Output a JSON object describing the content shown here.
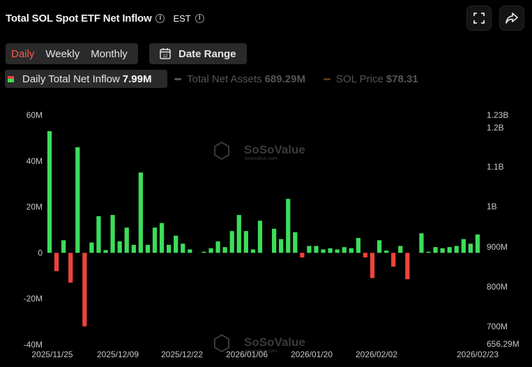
{
  "header": {
    "title": "Total SOL Spot ETF Net Inflow",
    "info_icon": "info-icon",
    "timezone": "EST",
    "fullscreen_icon": "fullscreen-icon",
    "share_icon": "share-icon"
  },
  "period_tabs": [
    {
      "label": "Daily",
      "active": true
    },
    {
      "label": "Weekly",
      "active": false
    },
    {
      "label": "Monthly",
      "active": false
    }
  ],
  "date_range": {
    "label": "Date Range",
    "icon": "calendar-icon",
    "icon_text": "12"
  },
  "legend": [
    {
      "name": "Daily Total Net Inflow",
      "value": "7.99M",
      "active": true
    },
    {
      "name": "Total Net Assets",
      "value": "689.29M",
      "active": false,
      "color": "#555555"
    },
    {
      "name": "SOL Price",
      "value": "$78.31",
      "active": false,
      "color": "#5a3a10"
    }
  ],
  "watermark": {
    "name": "SoSoValue",
    "site": "sosovalue.com"
  },
  "colors": {
    "positive": "#3ddc5a",
    "negative": "#f0433a",
    "axis_text": "#c8c8c8",
    "grid": "#1a1a1a"
  },
  "chart_data": {
    "type": "bar",
    "left_axis": {
      "ylim": [
        -40,
        60
      ],
      "ticks": [
        "60M",
        "40M",
        "20M",
        "0",
        "-20M",
        "-40M"
      ]
    },
    "right_axis": {
      "ticks": [
        "1.23B",
        "1.2B",
        "1.1B",
        "1B",
        "900M",
        "800M",
        "700M",
        "656.29M"
      ]
    },
    "x_ticks": [
      "2025/11/25",
      "2025/12/09",
      "2025/12/22",
      "2026/01/06",
      "2026/01/20",
      "2026/02/02",
      "2026/02/23"
    ],
    "series": [
      {
        "name": "Daily Total Net Inflow",
        "unit": "M",
        "values": [
          53,
          -8,
          5.5,
          -13,
          46,
          -32,
          4.5,
          16,
          1.2,
          16.5,
          5,
          11,
          3.5,
          35,
          3.5,
          11,
          13,
          3.5,
          7.5,
          4,
          1.5,
          0,
          0.5,
          2,
          5,
          2.5,
          9.5,
          16.5,
          9.5,
          1.5,
          14,
          0,
          10.5,
          6,
          23.5,
          9,
          -2,
          3,
          3,
          1.5,
          2,
          1.5,
          2.5,
          2,
          6.5,
          -2,
          -11,
          5.5,
          1,
          -6,
          3,
          -11.5,
          0,
          8.5,
          0.5,
          2.5,
          2,
          2.5,
          3,
          6,
          4,
          8
        ]
      }
    ]
  }
}
